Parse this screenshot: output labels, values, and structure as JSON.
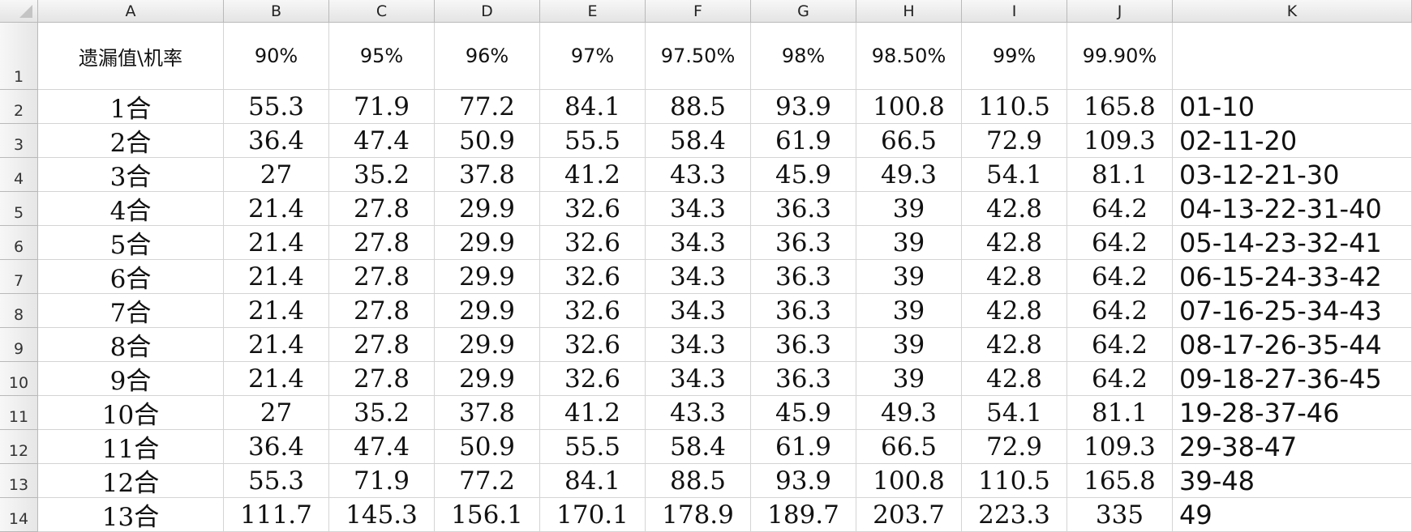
{
  "columns": [
    "A",
    "B",
    "C",
    "D",
    "E",
    "F",
    "G",
    "H",
    "I",
    "J",
    "K"
  ],
  "header_row": {
    "row_number": "1",
    "cells": [
      "遗漏值\\机率",
      "90%",
      "95%",
      "96%",
      "97%",
      "97.50%",
      "98%",
      "98.50%",
      "99%",
      "99.90%",
      ""
    ]
  },
  "rows": [
    {
      "row_number": "2",
      "cells": [
        "1合",
        "55.3",
        "71.9",
        "77.2",
        "84.1",
        "88.5",
        "93.9",
        "100.8",
        "110.5",
        "165.8",
        "01-10"
      ]
    },
    {
      "row_number": "3",
      "cells": [
        "2合",
        "36.4",
        "47.4",
        "50.9",
        "55.5",
        "58.4",
        "61.9",
        "66.5",
        "72.9",
        "109.3",
        "02-11-20"
      ]
    },
    {
      "row_number": "4",
      "cells": [
        "3合",
        "27",
        "35.2",
        "37.8",
        "41.2",
        "43.3",
        "45.9",
        "49.3",
        "54.1",
        "81.1",
        "03-12-21-30"
      ]
    },
    {
      "row_number": "5",
      "cells": [
        "4合",
        "21.4",
        "27.8",
        "29.9",
        "32.6",
        "34.3",
        "36.3",
        "39",
        "42.8",
        "64.2",
        "04-13-22-31-40"
      ]
    },
    {
      "row_number": "6",
      "cells": [
        "5合",
        "21.4",
        "27.8",
        "29.9",
        "32.6",
        "34.3",
        "36.3",
        "39",
        "42.8",
        "64.2",
        "05-14-23-32-41"
      ]
    },
    {
      "row_number": "7",
      "cells": [
        "6合",
        "21.4",
        "27.8",
        "29.9",
        "32.6",
        "34.3",
        "36.3",
        "39",
        "42.8",
        "64.2",
        "06-15-24-33-42"
      ]
    },
    {
      "row_number": "8",
      "cells": [
        "7合",
        "21.4",
        "27.8",
        "29.9",
        "32.6",
        "34.3",
        "36.3",
        "39",
        "42.8",
        "64.2",
        "07-16-25-34-43"
      ]
    },
    {
      "row_number": "9",
      "cells": [
        "8合",
        "21.4",
        "27.8",
        "29.9",
        "32.6",
        "34.3",
        "36.3",
        "39",
        "42.8",
        "64.2",
        "08-17-26-35-44"
      ]
    },
    {
      "row_number": "10",
      "cells": [
        "9合",
        "21.4",
        "27.8",
        "29.9",
        "32.6",
        "34.3",
        "36.3",
        "39",
        "42.8",
        "64.2",
        "09-18-27-36-45"
      ]
    },
    {
      "row_number": "11",
      "cells": [
        "10合",
        "27",
        "35.2",
        "37.8",
        "41.2",
        "43.3",
        "45.9",
        "49.3",
        "54.1",
        "81.1",
        "19-28-37-46"
      ]
    },
    {
      "row_number": "12",
      "cells": [
        "11合",
        "36.4",
        "47.4",
        "50.9",
        "55.5",
        "58.4",
        "61.9",
        "66.5",
        "72.9",
        "109.3",
        "29-38-47"
      ]
    },
    {
      "row_number": "13",
      "cells": [
        "12合",
        "55.3",
        "71.9",
        "77.2",
        "84.1",
        "88.5",
        "93.9",
        "100.8",
        "110.5",
        "165.8",
        "39-48"
      ]
    },
    {
      "row_number": "14",
      "cells": [
        "13合",
        "111.7",
        "145.3",
        "156.1",
        "170.1",
        "178.9",
        "189.7",
        "203.7",
        "223.3",
        "335",
        "49"
      ]
    }
  ]
}
